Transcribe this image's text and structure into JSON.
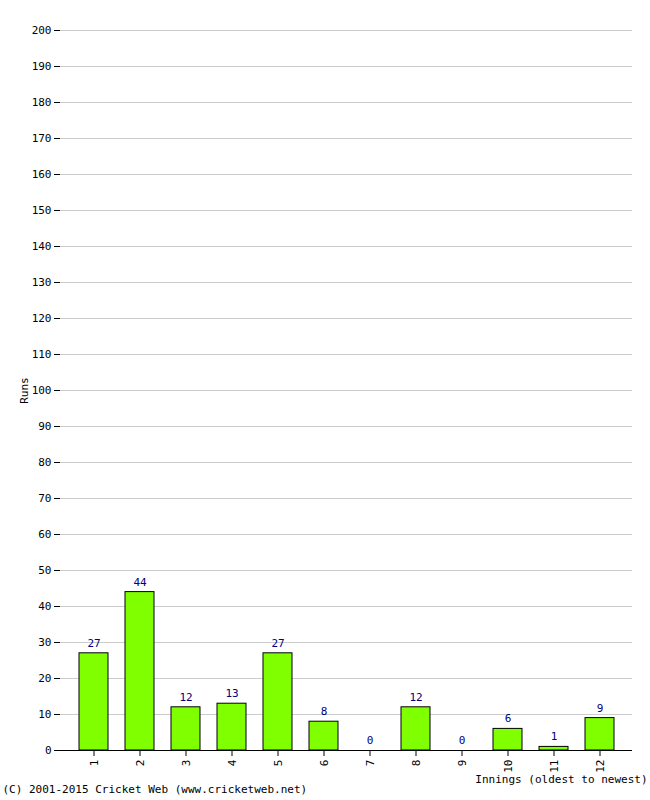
{
  "chart_data": {
    "type": "bar",
    "categories": [
      "1",
      "2",
      "3",
      "4",
      "5",
      "6",
      "7",
      "8",
      "9",
      "10",
      "11",
      "12"
    ],
    "values": [
      27,
      44,
      12,
      13,
      27,
      8,
      0,
      12,
      0,
      6,
      1,
      9
    ],
    "color": "#7fff00",
    "x_label": "Innings (oldest to newest)",
    "y_label": "Runs",
    "caption": "(C) 2001-2015 Cricket Web (www.cricketweb.net)",
    "ylim": [
      0,
      200
    ],
    "yticks": [
      0,
      10,
      20,
      30,
      40,
      50,
      60,
      70,
      80,
      90,
      100,
      110,
      120,
      130,
      140,
      150,
      160,
      170,
      180,
      190,
      200
    ],
    "grid": true,
    "data_labels": true
  }
}
